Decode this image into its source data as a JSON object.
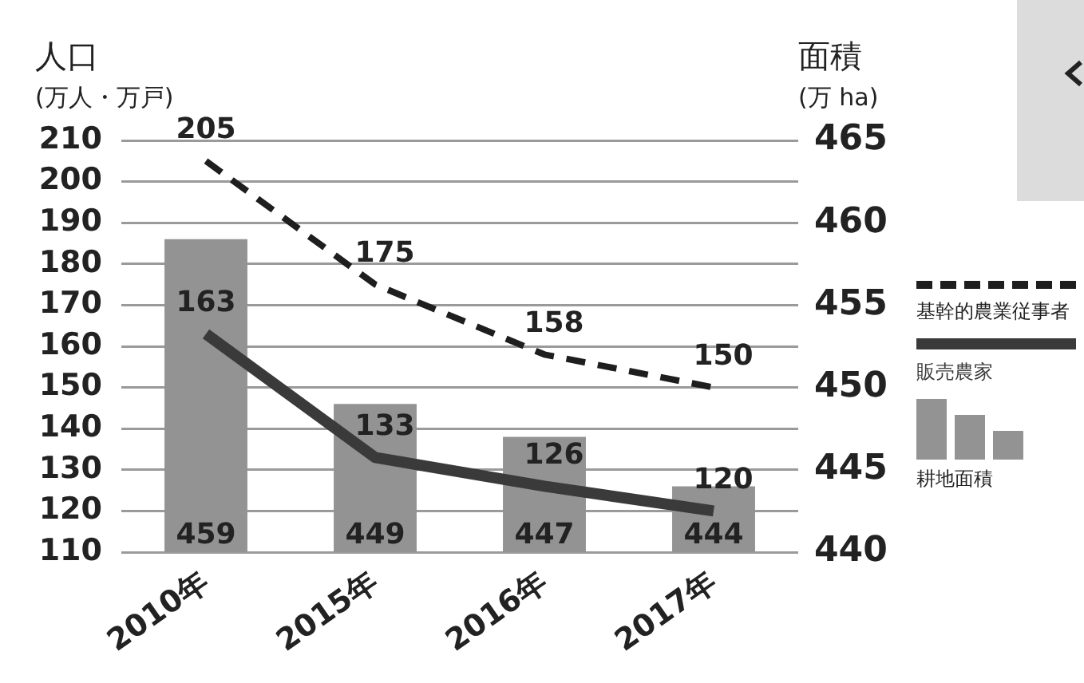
{
  "chart_data": {
    "type": "bar",
    "ylabel": "人口\n(万人・万戸)",
    "y2label": "面積\n(万 ha)",
    "categories": [
      "2010年",
      "2015年",
      "2016年",
      "2017年"
    ],
    "series": [
      {
        "name": "基幹的農業従事者",
        "type": "line",
        "color": "#1e1e1e",
        "line_style": "dashed",
        "values": [
          205,
          175,
          158,
          150
        ]
      },
      {
        "name": "販売農家",
        "type": "line",
        "color": "#3a3a3a",
        "line_style": "solid",
        "values": [
          163,
          133,
          126,
          120
        ]
      },
      {
        "name": "耕地面積",
        "axis": "y2",
        "color": "#939393",
        "values": [
          459,
          449,
          447,
          444
        ]
      }
    ],
    "ylim": [
      110,
      210
    ],
    "yticks": [
      110,
      120,
      130,
      140,
      150,
      160,
      170,
      180,
      190,
      200,
      210
    ],
    "y2lim": [
      440,
      465
    ],
    "y2ticks": [
      440,
      445,
      450,
      455,
      460,
      465
    ],
    "grid": "y",
    "legend": "right",
    "data_labels": true
  }
}
